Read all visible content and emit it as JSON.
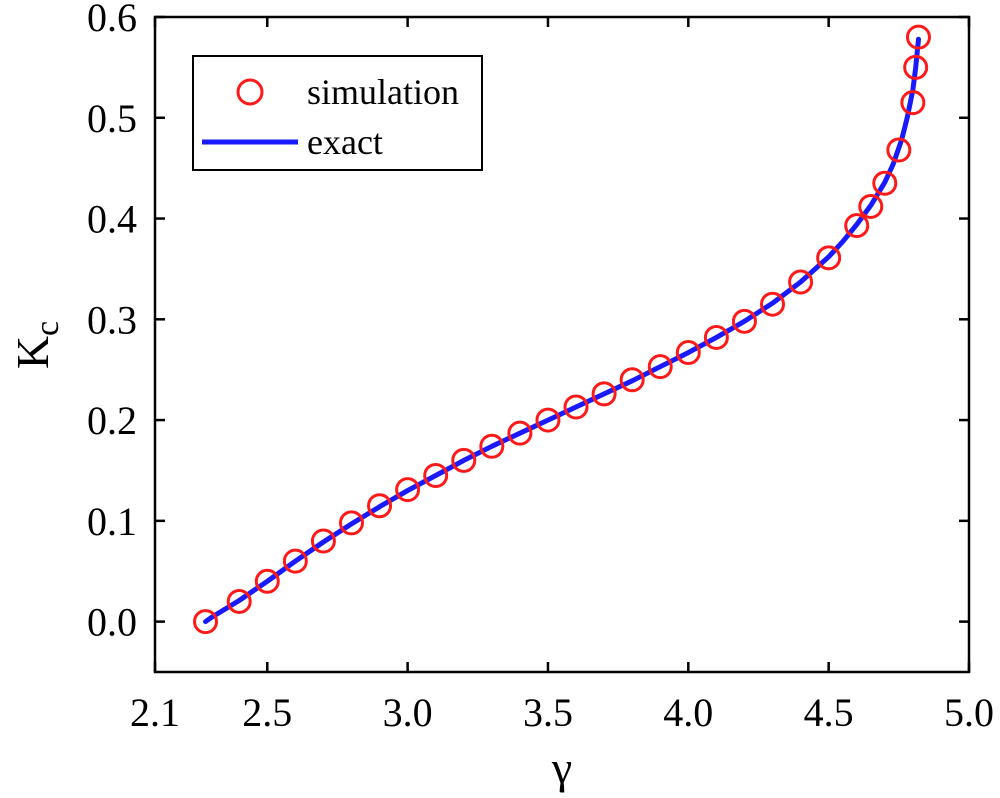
{
  "chart_data": {
    "type": "scatter",
    "title": "",
    "xlabel": "γ",
    "ylabel": {
      "main": "K",
      "sub": "c"
    },
    "xlim": [
      2.1,
      5.0
    ],
    "ylim": [
      -0.05,
      0.6
    ],
    "xticks": [
      2.1,
      2.5,
      3.0,
      3.5,
      4.0,
      4.5,
      5.0
    ],
    "xtick_labels": [
      "2.1",
      "2.5",
      "3.0",
      "3.5",
      "4.0",
      "4.5",
      "5.0"
    ],
    "yticks": [
      0.0,
      0.1,
      0.2,
      0.3,
      0.4,
      0.5,
      0.6
    ],
    "ytick_labels": [
      "0.0",
      "0.1",
      "0.2",
      "0.3",
      "0.4",
      "0.5",
      "0.6"
    ],
    "grid": false,
    "legend_position": "top-left",
    "series": [
      {
        "name": "simulation",
        "kind": "markers",
        "marker": "open-circle",
        "color": "#ff1a1a",
        "x": [
          2.28,
          2.4,
          2.5,
          2.6,
          2.7,
          2.8,
          2.9,
          3.0,
          3.1,
          3.2,
          3.3,
          3.4,
          3.5,
          3.6,
          3.7,
          3.8,
          3.9,
          4.0,
          4.1,
          4.2,
          4.3,
          4.4,
          4.5,
          4.6,
          4.65,
          4.7,
          4.75,
          4.8,
          4.81,
          4.82
        ],
        "y": [
          0.0,
          0.02,
          0.04,
          0.06,
          0.08,
          0.098,
          0.115,
          0.131,
          0.145,
          0.16,
          0.174,
          0.187,
          0.2,
          0.213,
          0.226,
          0.24,
          0.253,
          0.267,
          0.282,
          0.298,
          0.315,
          0.337,
          0.361,
          0.393,
          0.412,
          0.435,
          0.468,
          0.515,
          0.55,
          0.58
        ]
      },
      {
        "name": "exact",
        "kind": "line",
        "color": "#1a1aff",
        "x": [
          2.28,
          2.3,
          2.4,
          2.5,
          2.6,
          2.7,
          2.8,
          2.9,
          3.0,
          3.1,
          3.2,
          3.3,
          3.4,
          3.5,
          3.6,
          3.7,
          3.8,
          3.9,
          4.0,
          4.1,
          4.2,
          4.3,
          4.4,
          4.5,
          4.55,
          4.6,
          4.65,
          4.7,
          4.73,
          4.76,
          4.78,
          4.8,
          4.81,
          4.82
        ],
        "y": [
          0.0,
          0.004,
          0.021,
          0.04,
          0.06,
          0.079,
          0.097,
          0.114,
          0.13,
          0.145,
          0.16,
          0.174,
          0.187,
          0.2,
          0.213,
          0.226,
          0.239,
          0.253,
          0.267,
          0.282,
          0.298,
          0.316,
          0.337,
          0.362,
          0.377,
          0.394,
          0.413,
          0.436,
          0.454,
          0.478,
          0.5,
          0.528,
          0.55,
          0.578
        ]
      }
    ]
  }
}
